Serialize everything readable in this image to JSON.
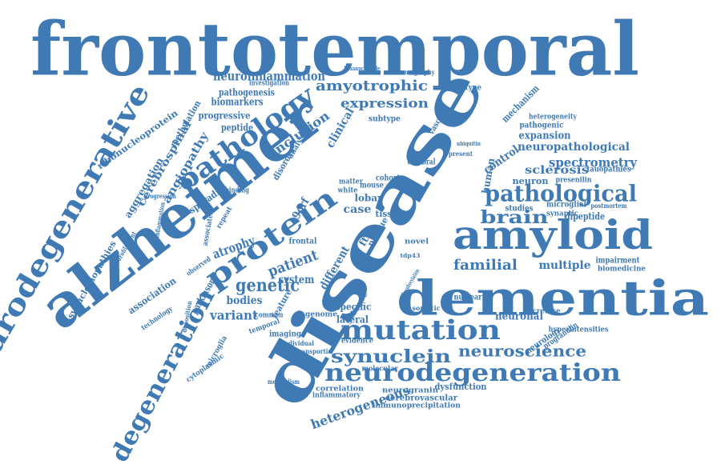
{
  "cloud": {
    "color": "#3f7ab5",
    "words": [
      "frontotemporal",
      "alzheimer",
      "disease",
      "dementia",
      "amyloid",
      "neurodegenerative",
      "degeneration",
      "neurodegeneration",
      "pathology",
      "protein",
      "mutation",
      "pathological",
      "synuclein",
      "neuroscience",
      "brain",
      "genetic",
      "amyotrophic",
      "neuroinflammation",
      "expression",
      "sclerosis",
      "spectrometry",
      "neuropathological",
      "heterogeneous",
      "familial",
      "multiple",
      "patient",
      "inclusion",
      "angiopathy",
      "cerebrospinal",
      "ribonucleoprotein",
      "synucleinopathies",
      "aggregation",
      "methylation",
      "biomarkers",
      "progressive",
      "pathogenesis",
      "peptide",
      "clinical",
      "atrophy",
      "system",
      "variant",
      "bodies",
      "association",
      "parkinson",
      "lateral",
      "neuronal",
      "different",
      "control",
      "human",
      "expansion",
      "neuron",
      "case",
      "lobar",
      "tissue",
      "sporadic",
      "disorder",
      "analysis",
      "dysfunction",
      "cerebrovascular",
      "immunoprecipitation",
      "neurogranin",
      "correlation",
      "inflammatory",
      "metabolism",
      "imaging",
      "transportin",
      "microglia",
      "cytoplasmic",
      "mechanism",
      "pathogenic",
      "heterogeneity",
      "phenotype",
      "vascular",
      "tauopathies",
      "presenilin",
      "dipeptide",
      "impairment",
      "biomedicine",
      "microglial",
      "synaptic",
      "postmortem",
      "hyperintensities",
      "neurology",
      "progranulin",
      "secretase",
      "nuclear",
      "specific",
      "genome",
      "temporal",
      "molecular",
      "evidence",
      "science",
      "somatic",
      "frontal",
      "cohort",
      "cerebral",
      "studies",
      "subtype",
      "feature",
      "common",
      "novel",
      "plaque",
      "associated",
      "technology",
      "deposition",
      "inflammation",
      "neurofilament",
      "progression",
      "repeat",
      "binding",
      "observed",
      "individual",
      "ftld",
      "tomography",
      "hexanucleotide",
      "investigation",
      "c9orf",
      "mouse",
      "white",
      "matter",
      "present",
      "ubiquitin",
      "tdp43",
      "phosphorylation"
    ]
  }
}
